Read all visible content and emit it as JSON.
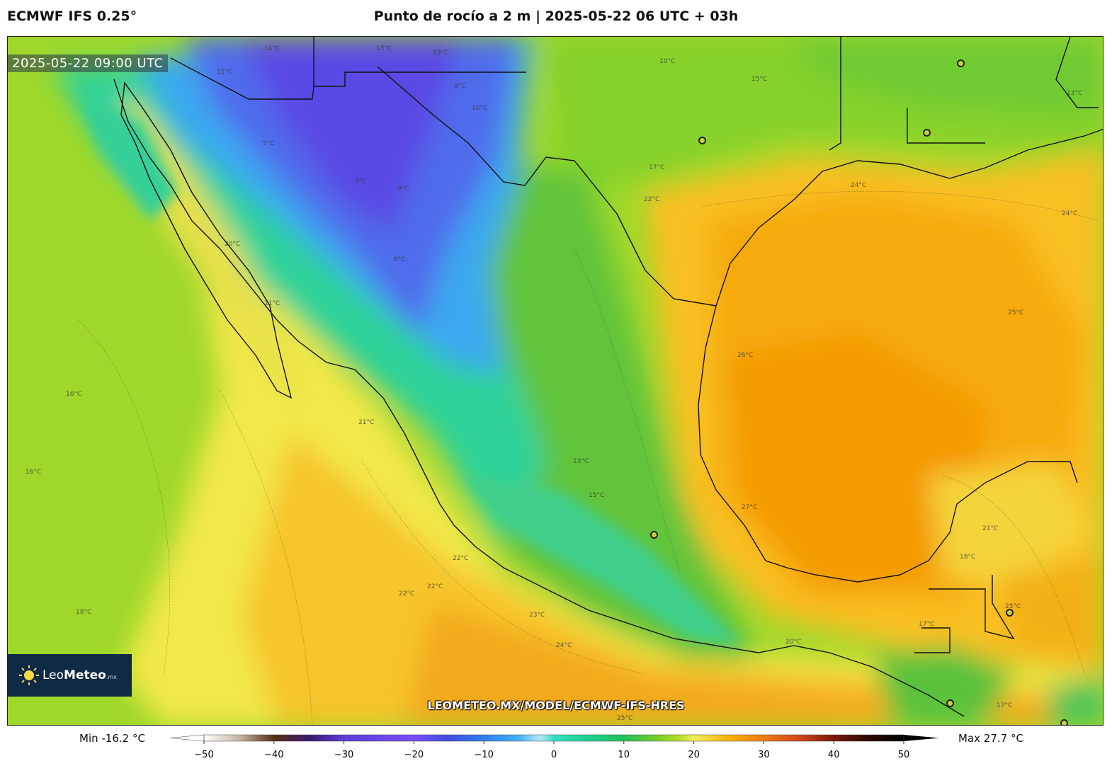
{
  "header": {
    "model": "ECMWF IFS 0.25°",
    "title": "Punto de rocío a 2 m | 2025-05-22 06 UTC + 03h"
  },
  "map": {
    "valid_time": "2025-05-22 09:00 UTC",
    "source_url": "LEOMETEO.MX/MODEL/ECMWF-IFS-HRES",
    "logo": {
      "name": "Leo",
      "bold": "Meteo",
      "suffix": ".mx"
    },
    "contour_labels": [
      {
        "text": "14°C"
      },
      {
        "text": "13°C"
      },
      {
        "text": "13°C"
      },
      {
        "text": "9°C"
      },
      {
        "text": "11°C"
      },
      {
        "text": "10°C"
      },
      {
        "text": "5°C"
      },
      {
        "text": "9°C"
      },
      {
        "text": "7°C"
      },
      {
        "text": "8°C"
      },
      {
        "text": "15°C"
      },
      {
        "text": "10°C"
      },
      {
        "text": "17°C"
      },
      {
        "text": "22°C"
      },
      {
        "text": "24°C"
      },
      {
        "text": "20°C"
      },
      {
        "text": "21°C"
      },
      {
        "text": "26°C"
      },
      {
        "text": "25°C"
      },
      {
        "text": "24°C"
      },
      {
        "text": "16°C"
      },
      {
        "text": "21°C"
      },
      {
        "text": "16°C"
      },
      {
        "text": "27°C"
      },
      {
        "text": "22°C"
      },
      {
        "text": "22°C"
      },
      {
        "text": "22°C"
      },
      {
        "text": "23°C"
      },
      {
        "text": "24°C"
      },
      {
        "text": "25°C"
      },
      {
        "text": "18°C"
      },
      {
        "text": "13°C"
      },
      {
        "text": "15°C"
      },
      {
        "text": "21°C"
      },
      {
        "text": "18°C"
      },
      {
        "text": "17°C"
      },
      {
        "text": "25°C"
      },
      {
        "text": "17°C"
      },
      {
        "text": "20°C"
      },
      {
        "text": "13°C"
      }
    ]
  },
  "legend": {
    "min_label": "Min -16.2 °C",
    "max_label": "Max 27.7 °C",
    "ticks": [
      "−50",
      "−40",
      "−30",
      "−20",
      "−10",
      "0",
      "10",
      "20",
      "30",
      "40",
      "50"
    ],
    "range": [
      -50,
      50
    ]
  },
  "colors": {
    "ocean_pacific": "#9fd82a",
    "gulf_core": "#f7a500",
    "dry_core": "#5a55e6",
    "border": "#111111"
  }
}
